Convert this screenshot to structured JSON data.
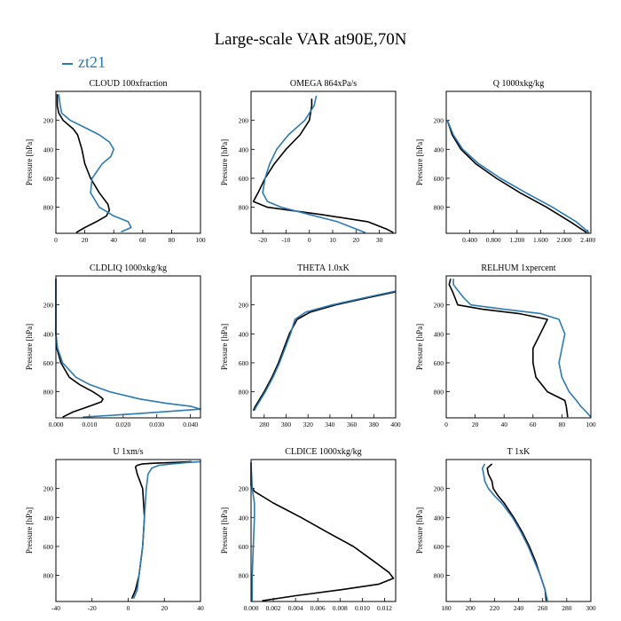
{
  "figure_title": "Large-scale VAR at90E,70N",
  "legend": {
    "label": "zt21",
    "color": "#2a7ab5"
  },
  "colors": {
    "series_primary": "#000000",
    "series_zt21": "#2a7ab5"
  },
  "chart_data": [
    {
      "type": "line",
      "title": "CLOUD 100xfraction",
      "ylabel": "Pressure [hPa]",
      "xlim": [
        0,
        100
      ],
      "ylim": [
        0,
        980
      ],
      "y_inverted": true,
      "xticks": [
        0,
        20,
        40,
        60,
        80,
        100
      ],
      "xtick_labels": [
        "0",
        "20",
        "40",
        "60",
        "80",
        "100"
      ],
      "yticks": [
        200,
        400,
        600,
        800
      ],
      "ytick_labels": [
        "200",
        "400",
        "600",
        "800"
      ],
      "series": [
        {
          "color": "#000000",
          "y": [
            20,
            100,
            150,
            200,
            260,
            300,
            400,
            500,
            600,
            700,
            780,
            820,
            860,
            900,
            940,
            975
          ],
          "x": [
            1,
            1,
            2,
            5,
            12,
            15,
            18,
            20,
            24,
            30,
            36,
            37,
            35,
            28,
            20,
            14
          ]
        },
        {
          "name": "zt21",
          "color": "#2a7ab5",
          "y": [
            20,
            100,
            150,
            200,
            260,
            300,
            350,
            400,
            450,
            500,
            600,
            700,
            800,
            860,
            900,
            940,
            970
          ],
          "x": [
            2,
            3,
            4,
            10,
            22,
            30,
            37,
            40,
            38,
            32,
            25,
            24,
            30,
            40,
            50,
            52,
            45
          ]
        }
      ]
    },
    {
      "type": "line",
      "title": "OMEGA 864xPa/s",
      "ylabel": "Pressure [hPa]",
      "xlim": [
        -25,
        37
      ],
      "ylim": [
        0,
        980
      ],
      "y_inverted": true,
      "xticks": [
        -20,
        -10,
        0,
        10,
        20,
        30
      ],
      "xtick_labels": [
        "-20",
        "-10",
        "0",
        "10",
        "20",
        "30"
      ],
      "yticks": [
        200,
        400,
        600,
        800
      ],
      "ytick_labels": [
        "200",
        "400",
        "600",
        "800"
      ],
      "series": [
        {
          "color": "#000000",
          "y": [
            50,
            100,
            200,
            300,
            400,
            500,
            600,
            700,
            760,
            800,
            850,
            900,
            950,
            975
          ],
          "x": [
            1,
            1,
            0,
            -4,
            -10,
            -15,
            -19,
            -22,
            -24,
            -18,
            5,
            25,
            33,
            36
          ]
        },
        {
          "name": "zt21",
          "color": "#2a7ab5",
          "y": [
            30,
            100,
            200,
            300,
            400,
            500,
            600,
            700,
            760,
            800,
            850,
            900,
            950,
            975
          ],
          "x": [
            3,
            2,
            -2,
            -9,
            -14,
            -17,
            -19,
            -20,
            -18,
            -12,
            0,
            12,
            20,
            24
          ]
        }
      ]
    },
    {
      "type": "line",
      "title": "Q 1000xkg/kg",
      "ylabel": "Pressure [hPa]",
      "xlim": [
        0,
        2.45
      ],
      "ylim": [
        0,
        980
      ],
      "y_inverted": true,
      "xticks": [
        0.4,
        0.8,
        1.2,
        1.6,
        2.0,
        2.4
      ],
      "xtick_labels": [
        "0.400",
        "0.800",
        "1.200",
        "1.600",
        "2.000",
        "2.400"
      ],
      "yticks": [
        200,
        400,
        600,
        800
      ],
      "ytick_labels": [
        "200",
        "400",
        "600",
        "800"
      ],
      "series": [
        {
          "color": "#000000",
          "y": [
            200,
            300,
            400,
            500,
            600,
            700,
            800,
            900,
            975
          ],
          "x": [
            0.02,
            0.1,
            0.25,
            0.5,
            0.85,
            1.25,
            1.7,
            2.1,
            2.38
          ]
        },
        {
          "name": "zt21",
          "color": "#2a7ab5",
          "y": [
            200,
            300,
            400,
            500,
            600,
            700,
            800,
            900,
            975
          ],
          "x": [
            0.02,
            0.12,
            0.28,
            0.55,
            0.92,
            1.35,
            1.8,
            2.2,
            2.42
          ]
        }
      ]
    },
    {
      "type": "line",
      "title": "CLDLIQ 1000xkg/kg",
      "ylabel": "Pressure [hPa]",
      "xlim": [
        0,
        0.043
      ],
      "ylim": [
        0,
        980
      ],
      "y_inverted": true,
      "xticks": [
        0,
        0.01,
        0.02,
        0.03,
        0.04
      ],
      "xtick_labels": [
        "0.000",
        "0.010",
        "0.020",
        "0.030",
        "0.040"
      ],
      "yticks": [
        200,
        400,
        600,
        800
      ],
      "ytick_labels": [
        "200",
        "400",
        "600",
        "800"
      ],
      "series": [
        {
          "color": "#000000",
          "y": [
            20,
            400,
            500,
            600,
            700,
            750,
            800,
            830,
            850,
            870,
            900,
            940,
            975
          ],
          "x": [
            0,
            0,
            0.0003,
            0.0015,
            0.004,
            0.007,
            0.011,
            0.013,
            0.014,
            0.0135,
            0.01,
            0.005,
            0.002
          ]
        },
        {
          "name": "zt21",
          "color": "#2a7ab5",
          "y": [
            20,
            400,
            500,
            600,
            700,
            750,
            800,
            850,
            880,
            900,
            920,
            950,
            975
          ],
          "x": [
            0,
            0,
            0.0005,
            0.002,
            0.006,
            0.01,
            0.016,
            0.025,
            0.033,
            0.04,
            0.043,
            0.025,
            0.008
          ]
        }
      ]
    },
    {
      "type": "line",
      "title": "THETA 1.0xK",
      "ylabel": "Pressure [hPa]",
      "xlim": [
        268,
        400
      ],
      "ylim": [
        0,
        980
      ],
      "y_inverted": true,
      "xticks": [
        280,
        300,
        320,
        340,
        360,
        380,
        400
      ],
      "xtick_labels": [
        "280",
        "300",
        "320",
        "340",
        "360",
        "380",
        "400"
      ],
      "yticks": [
        200,
        400,
        600,
        800
      ],
      "ytick_labels": [
        "200",
        "400",
        "600",
        "800"
      ],
      "series": [
        {
          "color": "#000000",
          "y": [
            110,
            150,
            200,
            250,
            300,
            400,
            500,
            600,
            700,
            800,
            900,
            930
          ],
          "x": [
            400,
            375,
            345,
            322,
            310,
            303,
            298,
            293,
            287,
            280,
            272,
            270
          ]
        },
        {
          "name": "zt21",
          "color": "#2a7ab5",
          "y": [
            105,
            150,
            200,
            250,
            300,
            400,
            500,
            600,
            700,
            800,
            900,
            930
          ],
          "x": [
            400,
            372,
            342,
            318,
            308,
            304,
            299,
            294,
            288,
            281,
            273,
            271
          ]
        }
      ]
    },
    {
      "type": "line",
      "title": "RELHUM 1xpercent",
      "ylabel": "Pressure [hPa]",
      "xlim": [
        0,
        100
      ],
      "ylim": [
        0,
        980
      ],
      "y_inverted": true,
      "xticks": [
        0,
        20,
        40,
        60,
        80,
        100
      ],
      "xtick_labels": [
        "0",
        "20",
        "40",
        "60",
        "80",
        "100"
      ],
      "yticks": [
        200,
        400,
        600,
        800
      ],
      "ytick_labels": [
        "200",
        "400",
        "600",
        "800"
      ],
      "series": [
        {
          "color": "#000000",
          "y": [
            20,
            60,
            100,
            150,
            200,
            230,
            260,
            300,
            400,
            500,
            600,
            700,
            800,
            860,
            900,
            975
          ],
          "x": [
            3,
            2,
            4,
            6,
            8,
            25,
            50,
            70,
            65,
            60,
            60,
            62,
            70,
            82,
            83,
            84
          ]
        },
        {
          "name": "zt21",
          "color": "#2a7ab5",
          "y": [
            20,
            60,
            100,
            150,
            200,
            230,
            260,
            300,
            400,
            500,
            600,
            700,
            800,
            860,
            900,
            940,
            975
          ],
          "x": [
            5,
            5,
            8,
            12,
            17,
            40,
            65,
            78,
            82,
            80,
            78,
            80,
            85,
            90,
            93,
            97,
            100
          ]
        }
      ]
    },
    {
      "type": "line",
      "title": "U 1xm/s",
      "ylabel": "Pressure [hPa]",
      "xlim": [
        -40,
        40
      ],
      "ylim": [
        0,
        980
      ],
      "y_inverted": true,
      "xticks": [
        -40,
        -20,
        0,
        20,
        40
      ],
      "xtick_labels": [
        "-40",
        "-20",
        "0",
        "20",
        "40"
      ],
      "yticks": [
        200,
        400,
        600,
        800
      ],
      "ytick_labels": [
        "200",
        "400",
        "600",
        "800"
      ],
      "series": [
        {
          "color": "#000000",
          "y": [
            15,
            20,
            25,
            30,
            40,
            50,
            100,
            200,
            400,
            600,
            800,
            900,
            960
          ],
          "x": [
            35,
            25,
            15,
            8,
            5,
            4,
            5,
            8,
            9,
            8,
            6,
            4,
            2
          ]
        },
        {
          "name": "zt21",
          "color": "#2a7ab5",
          "y": [
            15,
            20,
            30,
            40,
            60,
            100,
            200,
            400,
            600,
            800,
            900,
            960
          ],
          "x": [
            40,
            33,
            24,
            17,
            13,
            11,
            10,
            9,
            8,
            6,
            5,
            3
          ]
        }
      ]
    },
    {
      "type": "line",
      "title": "CLDICE 1000xkg/kg",
      "ylabel": "Pressure [hPa]",
      "xlim": [
        0,
        0.013
      ],
      "ylim": [
        0,
        980
      ],
      "y_inverted": true,
      "xticks": [
        0,
        0.002,
        0.004,
        0.006,
        0.008,
        0.01,
        0.012
      ],
      "xtick_labels": [
        "0.000",
        "0.002",
        "0.004",
        "0.006",
        "0.008",
        "0.010",
        "0.012"
      ],
      "yticks": [
        200,
        400,
        600,
        800
      ],
      "ytick_labels": [
        "200",
        "400",
        "600",
        "800"
      ],
      "series": [
        {
          "color": "#000000",
          "y": [
            20,
            180,
            220,
            300,
            400,
            500,
            600,
            700,
            780,
            820,
            860,
            900,
            940,
            975
          ],
          "x": [
            0,
            0,
            0.0003,
            0.002,
            0.0045,
            0.0068,
            0.0092,
            0.011,
            0.0124,
            0.0128,
            0.0115,
            0.008,
            0.004,
            0.001
          ]
        },
        {
          "name": "zt21",
          "color": "#2a7ab5",
          "y": [
            20,
            200,
            300,
            400,
            600,
            800,
            975
          ],
          "x": [
            0,
            0.0001,
            0.0003,
            0.0003,
            0.0002,
            0.0001,
            0.0001
          ]
        }
      ]
    },
    {
      "type": "line",
      "title": "T 1xK",
      "ylabel": "Pressure [hPa]",
      "xlim": [
        180,
        300
      ],
      "ylim": [
        0,
        980
      ],
      "y_inverted": true,
      "xticks": [
        180,
        200,
        220,
        240,
        260,
        280,
        300
      ],
      "xtick_labels": [
        "180",
        "200",
        "220",
        "240",
        "260",
        "280",
        "300"
      ],
      "yticks": [
        200,
        400,
        600,
        800
      ],
      "ytick_labels": [
        "200",
        "400",
        "600",
        "800"
      ],
      "series": [
        {
          "color": "#000000",
          "y": [
            30,
            60,
            100,
            150,
            200,
            250,
            300,
            400,
            500,
            600,
            700,
            800,
            900,
            975
          ],
          "x": [
            218,
            214,
            215,
            218,
            219,
            223,
            228,
            236,
            243,
            249,
            254,
            258,
            262,
            263
          ]
        },
        {
          "name": "zt21",
          "color": "#2a7ab5",
          "y": [
            30,
            60,
            100,
            150,
            200,
            250,
            300,
            400,
            500,
            600,
            700,
            800,
            900,
            975
          ],
          "x": [
            212,
            210,
            211,
            212,
            215,
            220,
            226,
            235,
            242,
            248,
            253,
            258,
            262,
            264
          ]
        }
      ]
    }
  ]
}
